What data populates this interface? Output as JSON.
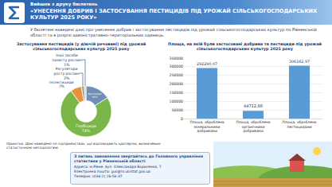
{
  "header": {
    "kicker": "Вийшов з друку бюлетень",
    "title": "«УНЕСЕННЯ ДОБРИВ І ЗАСТОСУВАННЯ ПЕСТИЦИДІВ ПІД УРОЖАЙ СІЛЬСЬКОГОСПОДАРСЬКИХ КУЛЬТУР 2025 РОКУ»"
  },
  "intro": "У бюлетені наведені дані про унесення добрив і застосування пестицидів під урожай сільськогосподарських культур по Рівненській області та в розрізі адміністративно-територіальних одиниць.",
  "chart_data": [
    {
      "type": "pie",
      "title": "Застосування пестицидів (у діючій речовині) під урожай сільськогосподарських культур 2025 року",
      "categories": [
        "Фунгіциди",
        "Гербіциди",
        "Інсектициди",
        "Регулятори росту рослин",
        "Інші засоби захисту рослин"
      ],
      "values": [
        16,
        74,
        7,
        2,
        1
      ],
      "value_labels": [
        "16%",
        "74%",
        "7%",
        "2%",
        "1%"
      ],
      "colors": [
        "#6f8fb8",
        "#7ab648",
        "#e8913a",
        "#a5a5a5",
        "#f2c744"
      ],
      "data_labels": true
    },
    {
      "type": "bar",
      "title": "Площа, на якій були застосовані добрива та пестициди під урожай сільськогосподарських культур 2025 року",
      "categories": [
        "Площа, оброблена мінеральними добривами",
        "Площа, оброблена органічними добривами",
        "Площа, оброблена пестицидами"
      ],
      "values": [
        292290.07,
        44712.88,
        306162.97
      ],
      "value_labels": [
        "292290,07",
        "44712,88",
        "306162,97"
      ],
      "colors": [
        "#5b9bd5",
        "#5b9bd5",
        "#5b9bd5"
      ],
      "ylim": [
        0,
        350000
      ],
      "yticks": [
        0,
        50000,
        100000,
        150000,
        200000,
        250000,
        300000,
        350000
      ],
      "grid": true,
      "data_labels": true
    }
  ],
  "note": "Примітка. Дані наведено по підприємствах, що відповідають критеріям, визначеним статистичною методологією.",
  "contact": {
    "title": "З питань замовлення звертайтесь до Головного управління статистики у Рівненській області",
    "lines": [
      "Адреса: м.Рівне, вул. Олександра Борисенка, 7",
      "Електронна пошта: gus@rv.ukrstat.gov.ua",
      "Телефон: (036-2) 26-56-37"
    ]
  }
}
